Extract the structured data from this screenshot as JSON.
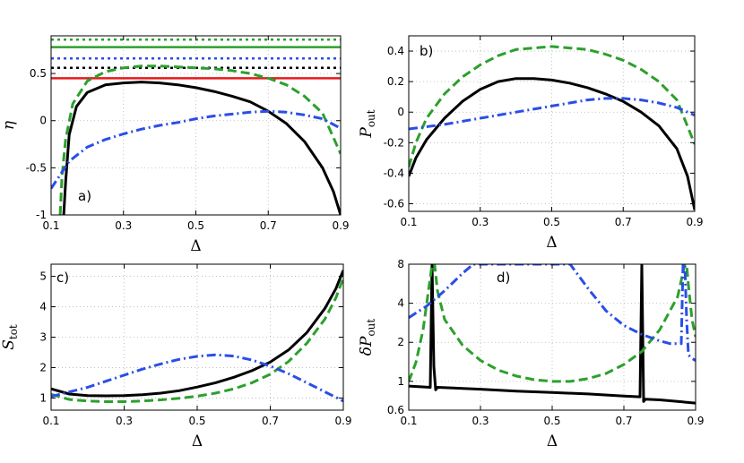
{
  "figure": {
    "colors": {
      "black": "#000000",
      "green": "#2ca02c",
      "blue": "#2a4ee8",
      "red": "#e41a1c",
      "grid": "#b5b5b5"
    }
  },
  "chart_data": [
    {
      "panel": "a)",
      "type": "line",
      "xlabel": "Δ",
      "ylabel": "η",
      "xlim": [
        0.1,
        0.9
      ],
      "ylim": [
        -1,
        0.9
      ],
      "xticks": [
        "0.1",
        "0.3",
        "0.5",
        "0.7",
        "0.9"
      ],
      "yticks": [
        "-1",
        "-0.5",
        "0",
        "0.5"
      ],
      "hlines": [
        {
          "y": 0.86,
          "color": "green",
          "style": "dotted"
        },
        {
          "y": 0.78,
          "color": "green",
          "style": "solid"
        },
        {
          "y": 0.66,
          "color": "blue",
          "style": "dotted"
        },
        {
          "y": 0.56,
          "color": "black",
          "style": "dotted"
        },
        {
          "y": 0.45,
          "color": "red",
          "style": "solid"
        }
      ],
      "series": [
        {
          "color": "black",
          "style": "solid",
          "x": [
            0.135,
            0.14,
            0.15,
            0.17,
            0.2,
            0.25,
            0.3,
            0.35,
            0.4,
            0.45,
            0.5,
            0.55,
            0.6,
            0.65,
            0.7,
            0.75,
            0.8,
            0.85,
            0.88,
            0.9
          ],
          "y": [
            -1.0,
            -0.65,
            -0.15,
            0.15,
            0.3,
            0.38,
            0.4,
            0.41,
            0.4,
            0.38,
            0.35,
            0.31,
            0.26,
            0.2,
            0.1,
            -0.03,
            -0.22,
            -0.5,
            -0.75,
            -1.0
          ]
        },
        {
          "color": "green",
          "style": "dashed",
          "x": [
            0.125,
            0.13,
            0.14,
            0.16,
            0.2,
            0.25,
            0.3,
            0.35,
            0.4,
            0.45,
            0.5,
            0.55,
            0.6,
            0.65,
            0.7,
            0.75,
            0.8,
            0.85,
            0.9
          ],
          "y": [
            -1.0,
            -0.6,
            -0.2,
            0.18,
            0.42,
            0.52,
            0.56,
            0.58,
            0.58,
            0.57,
            0.56,
            0.55,
            0.53,
            0.5,
            0.45,
            0.38,
            0.26,
            0.08,
            -0.35
          ]
        },
        {
          "color": "blue",
          "style": "dashdot",
          "x": [
            0.1,
            0.15,
            0.2,
            0.25,
            0.3,
            0.35,
            0.4,
            0.45,
            0.5,
            0.55,
            0.6,
            0.65,
            0.7,
            0.75,
            0.8,
            0.85,
            0.9
          ],
          "y": [
            -0.72,
            -0.43,
            -0.28,
            -0.2,
            -0.14,
            -0.09,
            -0.05,
            -0.02,
            0.02,
            0.05,
            0.07,
            0.09,
            0.1,
            0.09,
            0.06,
            0.02,
            -0.08
          ]
        }
      ]
    },
    {
      "panel": "b)",
      "type": "line",
      "xlabel": "Δ",
      "ylabel": "P",
      "ylabel_sub": "out",
      "xlim": [
        0.1,
        0.9
      ],
      "ylim": [
        -0.65,
        0.5
      ],
      "xticks": [
        "0.1",
        "0.3",
        "0.5",
        "0.7",
        "0.9"
      ],
      "yticks": [
        "-0.6",
        "-0.4",
        "-0.2",
        "0",
        "0.2",
        "0.4"
      ],
      "hlines": [],
      "series": [
        {
          "color": "black",
          "style": "solid",
          "x": [
            0.1,
            0.12,
            0.15,
            0.2,
            0.25,
            0.3,
            0.35,
            0.4,
            0.45,
            0.5,
            0.55,
            0.6,
            0.65,
            0.7,
            0.75,
            0.8,
            0.85,
            0.88,
            0.9
          ],
          "y": [
            -0.42,
            -0.3,
            -0.18,
            -0.04,
            0.07,
            0.15,
            0.2,
            0.22,
            0.22,
            0.21,
            0.19,
            0.16,
            0.12,
            0.07,
            0.0,
            -0.09,
            -0.24,
            -0.42,
            -0.64
          ]
        },
        {
          "color": "green",
          "style": "dashed",
          "x": [
            0.1,
            0.12,
            0.15,
            0.2,
            0.25,
            0.3,
            0.35,
            0.4,
            0.45,
            0.5,
            0.55,
            0.6,
            0.65,
            0.7,
            0.75,
            0.8,
            0.85,
            0.9
          ],
          "y": [
            -0.36,
            -0.2,
            -0.04,
            0.12,
            0.23,
            0.31,
            0.37,
            0.41,
            0.42,
            0.43,
            0.42,
            0.41,
            0.38,
            0.34,
            0.28,
            0.2,
            0.08,
            -0.21
          ]
        },
        {
          "color": "blue",
          "style": "dashdot",
          "x": [
            0.1,
            0.2,
            0.3,
            0.4,
            0.5,
            0.6,
            0.65,
            0.7,
            0.75,
            0.8,
            0.85,
            0.9
          ],
          "y": [
            -0.11,
            -0.08,
            -0.04,
            0.0,
            0.04,
            0.08,
            0.09,
            0.09,
            0.08,
            0.06,
            0.03,
            -0.02
          ]
        }
      ]
    },
    {
      "panel": "c)",
      "type": "line",
      "xlabel": "Δ",
      "ylabel": "S",
      "ylabel_sub": "tot",
      "xlim": [
        0.1,
        0.9
      ],
      "ylim": [
        0.6,
        5.4
      ],
      "xticks": [
        "0.1",
        "0.3",
        "0.5",
        "0.7",
        "0.9"
      ],
      "yticks": [
        "1",
        "2",
        "3",
        "4",
        "5"
      ],
      "hlines": [],
      "series": [
        {
          "color": "black",
          "style": "solid",
          "x": [
            0.1,
            0.15,
            0.2,
            0.25,
            0.3,
            0.35,
            0.4,
            0.45,
            0.5,
            0.55,
            0.6,
            0.65,
            0.7,
            0.75,
            0.8,
            0.85,
            0.88,
            0.9
          ],
          "y": [
            1.3,
            1.13,
            1.08,
            1.07,
            1.08,
            1.11,
            1.16,
            1.24,
            1.36,
            1.5,
            1.68,
            1.9,
            2.18,
            2.58,
            3.15,
            3.95,
            4.6,
            5.2
          ]
        },
        {
          "color": "green",
          "style": "dashed",
          "x": [
            0.1,
            0.15,
            0.2,
            0.25,
            0.3,
            0.35,
            0.4,
            0.45,
            0.5,
            0.55,
            0.6,
            0.65,
            0.7,
            0.75,
            0.8,
            0.85,
            0.88,
            0.9
          ],
          "y": [
            1.12,
            0.95,
            0.9,
            0.88,
            0.88,
            0.9,
            0.94,
            0.99,
            1.06,
            1.16,
            1.3,
            1.5,
            1.78,
            2.2,
            2.8,
            3.6,
            4.3,
            4.95
          ]
        },
        {
          "color": "blue",
          "style": "dashdot",
          "x": [
            0.1,
            0.15,
            0.2,
            0.25,
            0.3,
            0.35,
            0.4,
            0.45,
            0.5,
            0.55,
            0.6,
            0.65,
            0.7,
            0.75,
            0.8,
            0.85,
            0.9
          ],
          "y": [
            1.05,
            1.2,
            1.35,
            1.55,
            1.75,
            1.95,
            2.12,
            2.27,
            2.37,
            2.42,
            2.38,
            2.25,
            2.05,
            1.8,
            1.5,
            1.2,
            0.9
          ]
        }
      ]
    },
    {
      "panel": "d)",
      "type": "line",
      "xlabel": "Δ",
      "ylabel": "δP",
      "ylabel_sub": "out",
      "yscale": "log",
      "xlim": [
        0.1,
        0.9
      ],
      "ylim": [
        0.6,
        8
      ],
      "xticks": [
        "0.1",
        "0.3",
        "0.5",
        "0.7",
        "0.9"
      ],
      "yticks": [
        "0.6",
        "1",
        "2",
        "4",
        "8"
      ],
      "hlines": [],
      "series": [
        {
          "color": "black",
          "style": "solid",
          "x": [
            0.1,
            0.16,
            0.165,
            0.17,
            0.175,
            0.18,
            0.3,
            0.4,
            0.5,
            0.6,
            0.7,
            0.745,
            0.75,
            0.755,
            0.76,
            0.8,
            0.85,
            0.9
          ],
          "y": [
            0.92,
            0.9,
            8.0,
            1.3,
            0.86,
            0.9,
            0.87,
            0.84,
            0.82,
            0.8,
            0.77,
            0.76,
            8.0,
            0.7,
            0.73,
            0.72,
            0.7,
            0.68
          ]
        },
        {
          "color": "green",
          "style": "dashed",
          "x": [
            0.1,
            0.12,
            0.14,
            0.155,
            0.165,
            0.172,
            0.18,
            0.2,
            0.25,
            0.3,
            0.35,
            0.4,
            0.45,
            0.5,
            0.55,
            0.6,
            0.65,
            0.7,
            0.75,
            0.8,
            0.85,
            0.87,
            0.875,
            0.88,
            0.89,
            0.9
          ],
          "y": [
            1.0,
            1.4,
            2.5,
            5.0,
            8.0,
            8.0,
            5.0,
            3.0,
            1.9,
            1.45,
            1.22,
            1.1,
            1.03,
            1.0,
            1.0,
            1.05,
            1.15,
            1.35,
            1.7,
            2.5,
            4.5,
            8.0,
            8.0,
            5.5,
            3.0,
            2.2
          ]
        },
        {
          "color": "blue",
          "style": "dashdot",
          "x": [
            0.1,
            0.15,
            0.2,
            0.25,
            0.28,
            0.3,
            0.55,
            0.6,
            0.65,
            0.7,
            0.75,
            0.8,
            0.83,
            0.86,
            0.865,
            0.87,
            0.875,
            0.88,
            0.89,
            0.9
          ],
          "y": [
            3.1,
            3.8,
            5.0,
            6.8,
            8.0,
            8.0,
            8.0,
            5.2,
            3.5,
            2.7,
            2.3,
            2.05,
            1.95,
            1.95,
            8.0,
            8.0,
            3.0,
            1.6,
            1.5,
            1.45
          ]
        }
      ]
    }
  ]
}
